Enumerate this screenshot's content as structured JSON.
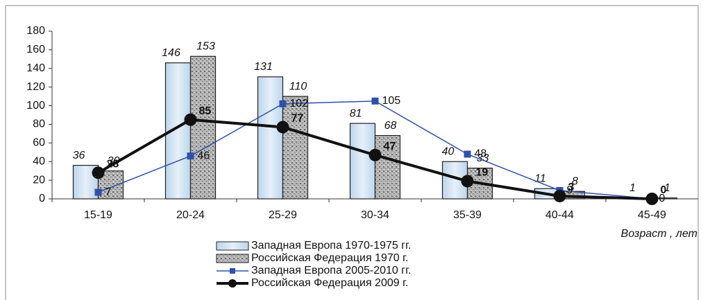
{
  "chart_data": {
    "type": "bar",
    "x_label": "Возраст , лет",
    "categories": [
      "15-19",
      "20-24",
      "25-29",
      "30-34",
      "35-39",
      "40-44",
      "45-49"
    ],
    "series": [
      {
        "name": "Западная Европа 1970-1975 гг.",
        "type": "bar",
        "color": "#d6e6f4",
        "values": [
          36,
          146,
          131,
          81,
          40,
          11,
          1
        ]
      },
      {
        "name": "Российская Федерация 1970 г.",
        "type": "bar",
        "color": "#9a9a9a",
        "values": [
          30,
          153,
          110,
          68,
          33,
          8,
          1
        ]
      },
      {
        "name": "Западная Европа 2005-2010 гг.",
        "type": "line",
        "color": "#2f50a8",
        "values": [
          7,
          46,
          102,
          105,
          48,
          9,
          0
        ]
      },
      {
        "name": "Российская Федерация 2009 г.",
        "type": "line",
        "color": "#111111",
        "values": [
          28,
          85,
          77,
          47,
          19,
          3,
          0
        ]
      }
    ],
    "ylim": [
      0,
      180
    ],
    "yticks": [
      0,
      20,
      40,
      60,
      80,
      100,
      120,
      140,
      160,
      180
    ],
    "grid": false
  }
}
